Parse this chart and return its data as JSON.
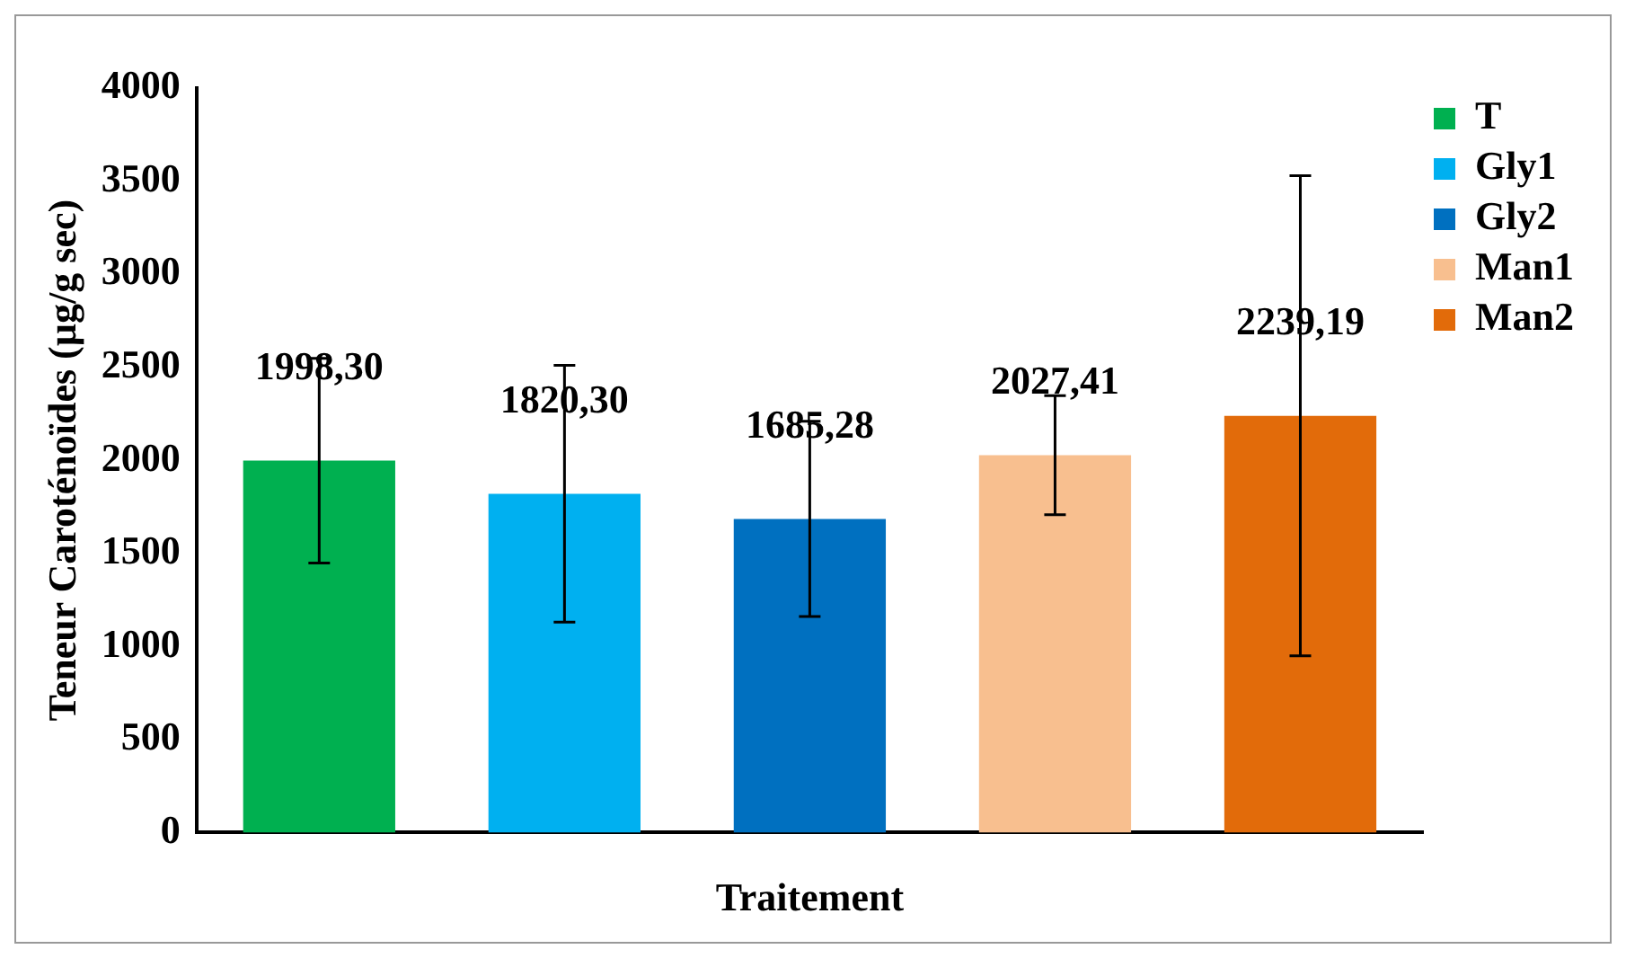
{
  "chart_data": {
    "type": "bar",
    "xlabel": "Traitement",
    "ylabel": "Teneur Caroténoïdes (µg/g sec)",
    "categories": [
      null
    ],
    "series": [
      {
        "name": "T",
        "color": "#00b050",
        "values": [
          1998.3
        ],
        "errors": [
          550
        ],
        "value_labels": [
          "1998,30"
        ]
      },
      {
        "name": "Gly1",
        "color": "#00b0f0",
        "values": [
          1820.3
        ],
        "errors": [
          690
        ],
        "value_labels": [
          "1820,30"
        ]
      },
      {
        "name": "Gly2",
        "color": "#0070c0",
        "values": [
          1685.28
        ],
        "errors": [
          525
        ],
        "value_labels": [
          "1685,28"
        ]
      },
      {
        "name": "Man1",
        "color": "#f8bf8f",
        "values": [
          2027.41
        ],
        "errors": [
          320
        ],
        "value_labels": [
          "2027,41"
        ]
      },
      {
        "name": "Man2",
        "color": "#e26b0a",
        "values": [
          2239.19
        ],
        "errors": [
          1290
        ],
        "value_labels": [
          "2239,19"
        ]
      }
    ],
    "ylim": [
      0,
      4000
    ],
    "yticks": [
      0,
      500,
      1000,
      1500,
      2000,
      2500,
      3000,
      3500,
      4000
    ],
    "grid": false,
    "legend": "top right"
  }
}
